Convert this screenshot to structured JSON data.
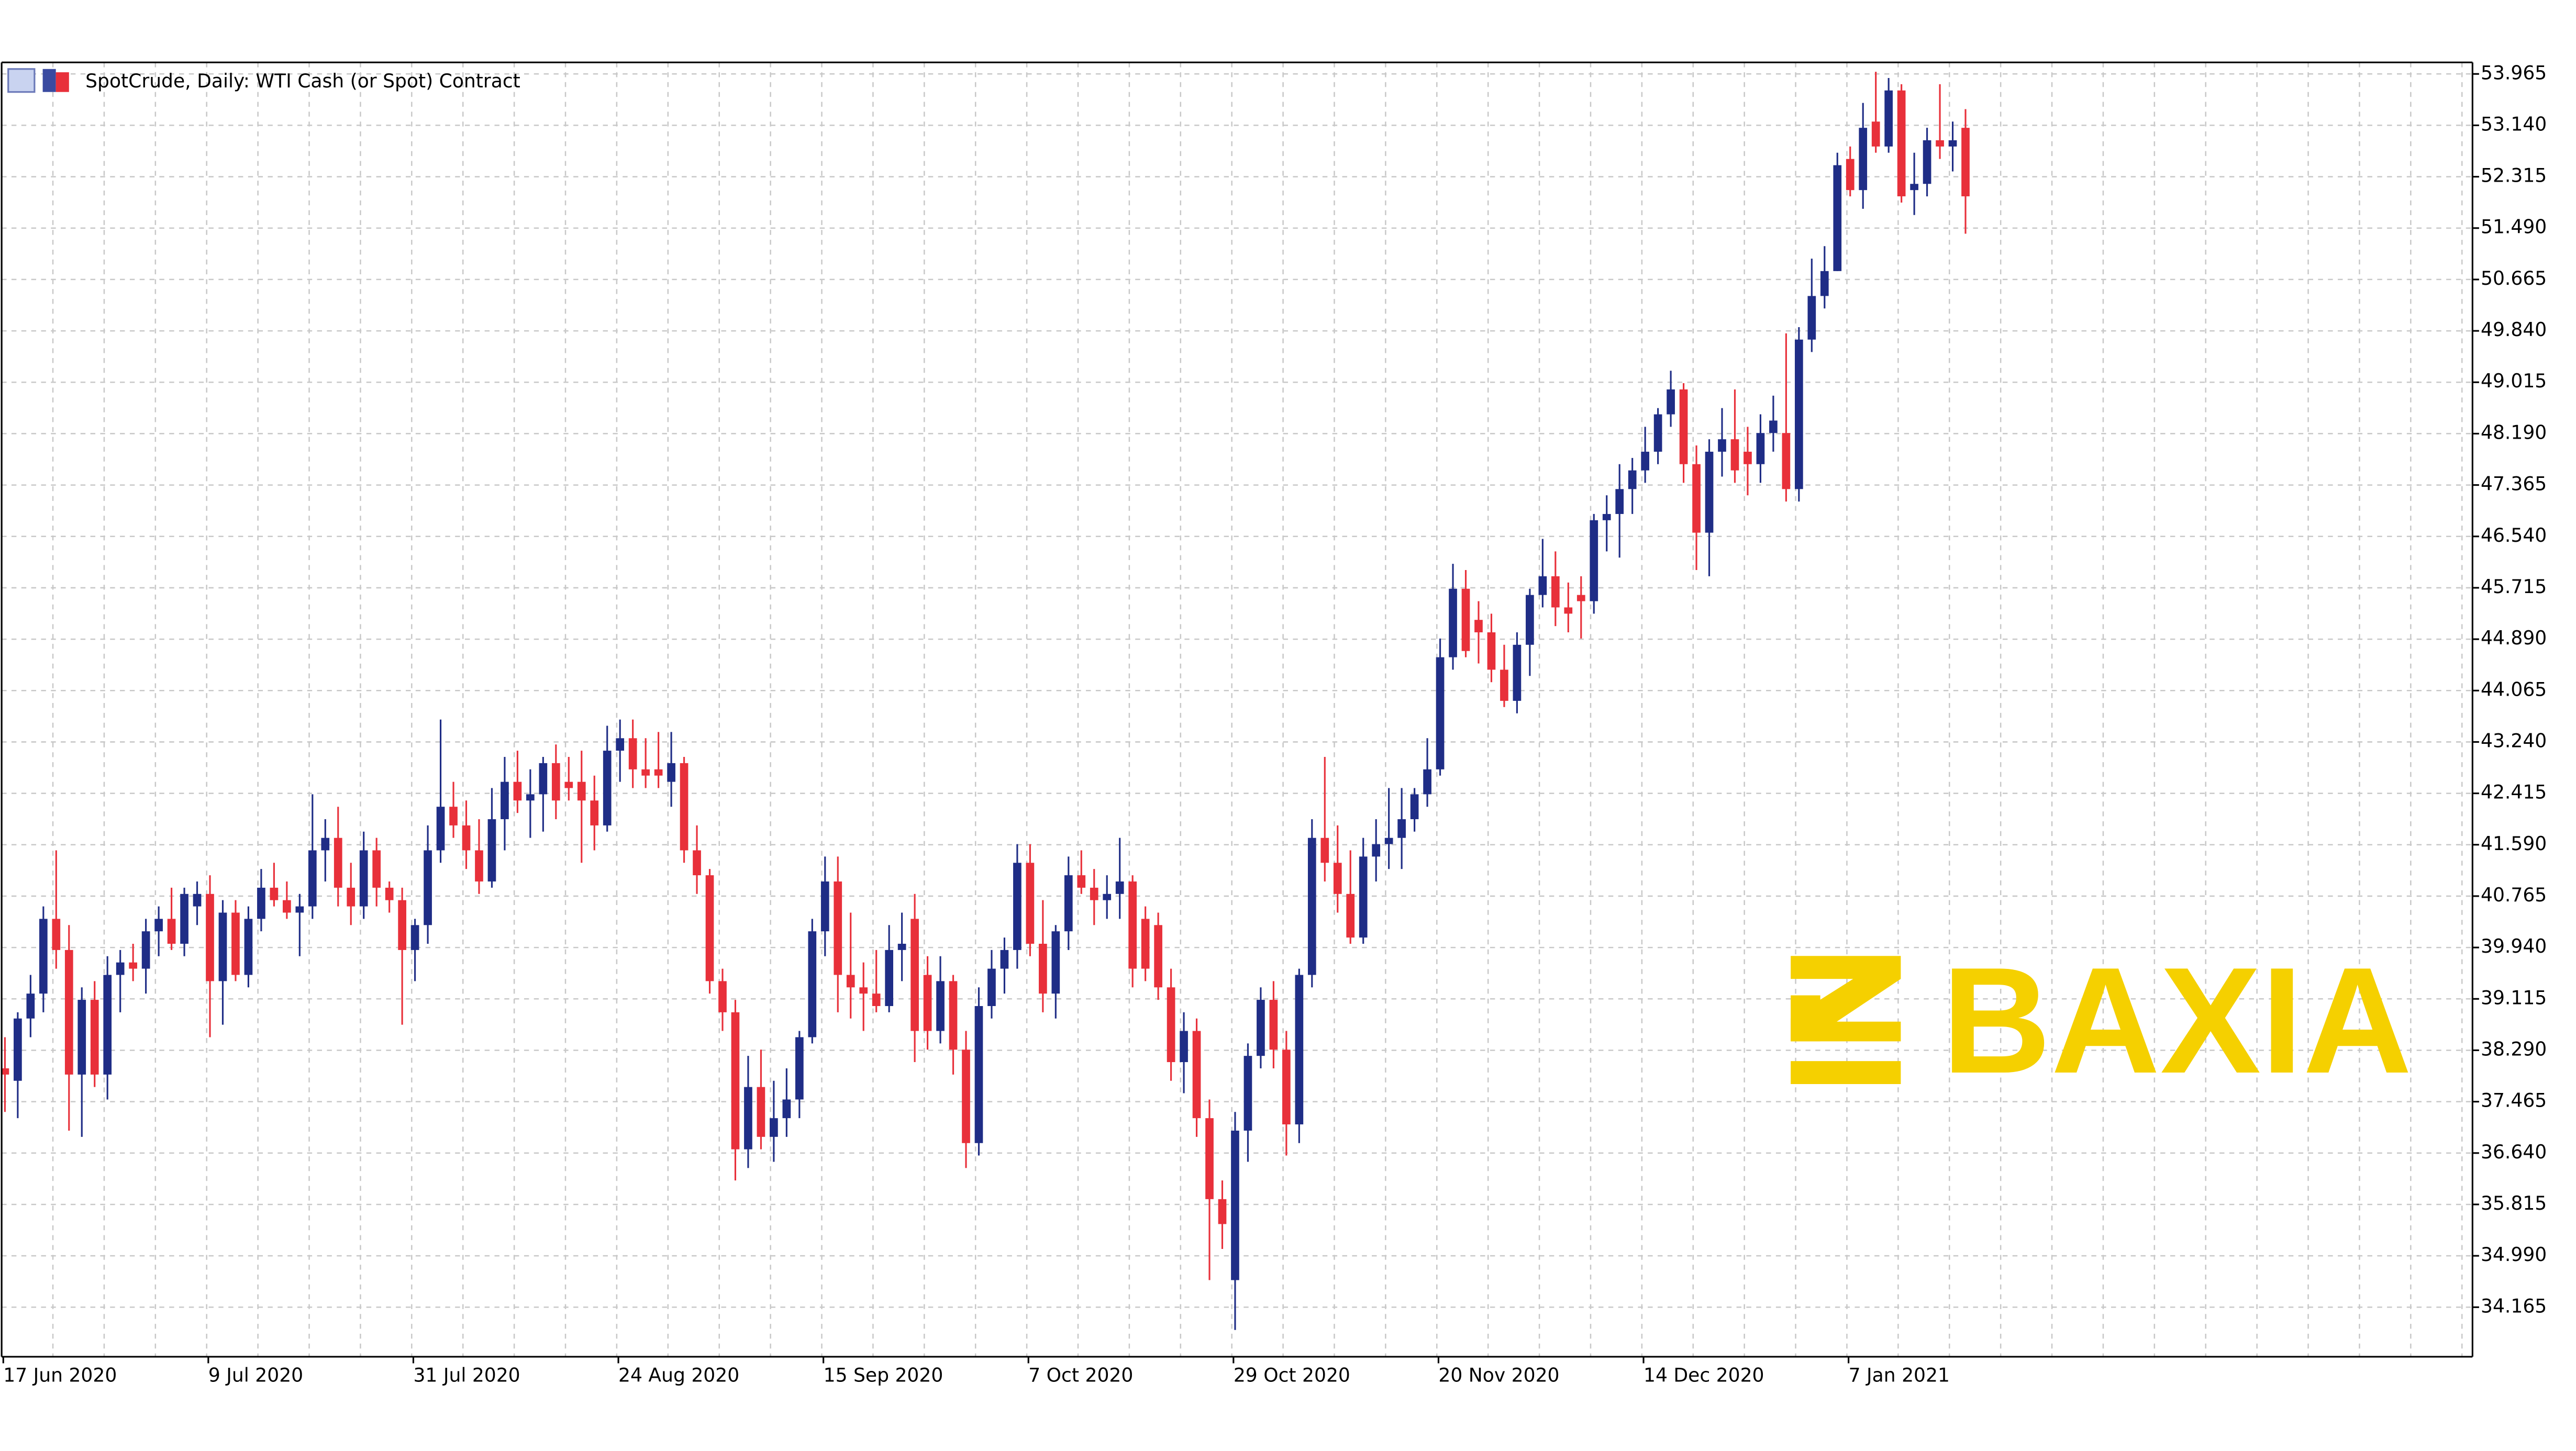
{
  "chart_data": {
    "type": "candlestick",
    "title": "SpotCrude, Daily:  WTI Cash (or Spot) Contract",
    "watermark": "BAXIA",
    "up_color": "#1f2d86",
    "down_color": "#e8303a",
    "grid": true,
    "ylim": [
      33.37,
      54.15
    ],
    "yticks": [
      53.965,
      {
        "value": 53.14,
        "label": "53.140"
      },
      52.315,
      {
        "value": 51.49,
        "label": "51.490"
      },
      50.665,
      {
        "value": 49.84,
        "label": "49.840"
      },
      49.015,
      {
        "value": 48.19,
        "label": "48.190"
      },
      47.365,
      {
        "value": 46.54,
        "label": "46.540"
      },
      45.715,
      {
        "value": 44.89,
        "label": "44.890"
      },
      44.065,
      {
        "value": 43.24,
        "label": "43.240"
      },
      42.415,
      {
        "value": 41.59,
        "label": "41.590"
      },
      40.765,
      {
        "value": 39.94,
        "label": "39.940"
      },
      39.115,
      {
        "value": 38.29,
        "label": "38.290"
      },
      37.465,
      {
        "value": 36.64,
        "label": "36.640"
      },
      35.815,
      {
        "value": 34.99,
        "label": "34.990"
      },
      34.165
    ],
    "categories": [
      "17 Jun 2020",
      null,
      null,
      null,
      null,
      null,
      null,
      null,
      null,
      null,
      null,
      null,
      null,
      null,
      null,
      null,
      "9 Jul 2020",
      null,
      null,
      null,
      null,
      null,
      null,
      null,
      null,
      null,
      null,
      null,
      null,
      null,
      null,
      null,
      "31 Jul 2020",
      null,
      null,
      null,
      null,
      null,
      null,
      null,
      null,
      null,
      null,
      null,
      null,
      null,
      null,
      null,
      "24 Aug 2020",
      null,
      null,
      null,
      null,
      null,
      null,
      null,
      null,
      null,
      null,
      null,
      null,
      null,
      null,
      null,
      "15 Sep 2020",
      null,
      null,
      null,
      null,
      null,
      null,
      null,
      null,
      null,
      null,
      null,
      null,
      null,
      null,
      null,
      "7 Oct 2020",
      null,
      null,
      null,
      null,
      null,
      null,
      null,
      null,
      null,
      null,
      null,
      null,
      null,
      null,
      null,
      "29 Oct 2020",
      null,
      null,
      null,
      null,
      null,
      null,
      null,
      null,
      null,
      null,
      null,
      null,
      null,
      null,
      null,
      "20 Nov 2020",
      null,
      null,
      null,
      null,
      null,
      null,
      null,
      null,
      null,
      null,
      null,
      null,
      null,
      null,
      null,
      "14 Dec 2020",
      null,
      null,
      null,
      null,
      null,
      null,
      null,
      null,
      null,
      null,
      null,
      null,
      null,
      null,
      null,
      "7 Jan 2021",
      null,
      null,
      null,
      null,
      null,
      null,
      null,
      null,
      null
    ],
    "ohlc": [
      [
        38.0,
        38.5,
        37.3,
        37.9
      ],
      [
        37.8,
        38.9,
        37.2,
        38.8
      ],
      [
        38.8,
        39.5,
        38.5,
        39.2
      ],
      [
        39.2,
        40.6,
        38.9,
        40.4
      ],
      [
        40.4,
        41.5,
        39.6,
        39.9
      ],
      [
        39.9,
        40.3,
        37.0,
        37.9
      ],
      [
        37.9,
        39.3,
        36.9,
        39.1
      ],
      [
        39.1,
        39.4,
        37.7,
        37.9
      ],
      [
        37.9,
        39.8,
        37.5,
        39.5
      ],
      [
        39.5,
        39.9,
        38.9,
        39.7
      ],
      [
        39.7,
        40.0,
        39.4,
        39.6
      ],
      [
        39.6,
        40.4,
        39.2,
        40.2
      ],
      [
        40.2,
        40.6,
        39.8,
        40.4
      ],
      [
        40.4,
        40.9,
        39.9,
        40.0
      ],
      [
        40.0,
        40.9,
        39.8,
        40.8
      ],
      [
        40.6,
        41.0,
        40.3,
        40.8
      ],
      [
        40.8,
        41.1,
        38.5,
        39.4
      ],
      [
        39.4,
        40.7,
        38.7,
        40.5
      ],
      [
        40.5,
        40.7,
        39.4,
        39.5
      ],
      [
        39.5,
        40.6,
        39.3,
        40.4
      ],
      [
        40.4,
        41.2,
        40.2,
        40.9
      ],
      [
        40.9,
        41.3,
        40.6,
        40.7
      ],
      [
        40.7,
        41.0,
        40.4,
        40.5
      ],
      [
        40.5,
        40.8,
        39.8,
        40.6
      ],
      [
        40.6,
        42.4,
        40.4,
        41.5
      ],
      [
        41.5,
        42.0,
        41.0,
        41.7
      ],
      [
        41.7,
        42.2,
        40.6,
        40.9
      ],
      [
        40.9,
        41.3,
        40.3,
        40.6
      ],
      [
        40.6,
        41.8,
        40.4,
        41.5
      ],
      [
        41.5,
        41.7,
        40.6,
        40.9
      ],
      [
        40.9,
        41.0,
        40.5,
        40.7
      ],
      [
        40.7,
        40.9,
        38.7,
        39.9
      ],
      [
        39.9,
        40.4,
        39.4,
        40.3
      ],
      [
        40.3,
        41.9,
        40.0,
        41.5
      ],
      [
        41.5,
        43.6,
        41.3,
        42.2
      ],
      [
        42.2,
        42.6,
        41.7,
        41.9
      ],
      [
        41.9,
        42.3,
        41.2,
        41.5
      ],
      [
        41.5,
        42.0,
        40.8,
        41.0
      ],
      [
        41.0,
        42.5,
        40.9,
        42.0
      ],
      [
        42.0,
        43.0,
        41.5,
        42.6
      ],
      [
        42.6,
        43.1,
        42.1,
        42.3
      ],
      [
        42.3,
        42.8,
        41.7,
        42.4
      ],
      [
        42.4,
        43.0,
        41.8,
        42.9
      ],
      [
        42.9,
        43.2,
        42.0,
        42.3
      ],
      [
        42.6,
        43.0,
        42.3,
        42.5
      ],
      [
        42.6,
        43.1,
        41.3,
        42.3
      ],
      [
        42.3,
        42.7,
        41.5,
        41.9
      ],
      [
        41.9,
        43.5,
        41.8,
        43.1
      ],
      [
        43.1,
        43.6,
        42.6,
        43.3
      ],
      [
        43.3,
        43.6,
        42.5,
        42.8
      ],
      [
        42.8,
        43.3,
        42.5,
        42.7
      ],
      [
        42.8,
        43.4,
        42.5,
        42.7
      ],
      [
        42.6,
        43.4,
        42.2,
        42.9
      ],
      [
        42.9,
        43.0,
        41.3,
        41.5
      ],
      [
        41.5,
        41.9,
        40.8,
        41.1
      ],
      [
        41.1,
        41.2,
        39.2,
        39.4
      ],
      [
        39.4,
        39.6,
        38.6,
        38.9
      ],
      [
        38.9,
        39.1,
        36.2,
        36.7
      ],
      [
        36.7,
        38.2,
        36.4,
        37.7
      ],
      [
        37.7,
        38.3,
        36.7,
        36.9
      ],
      [
        36.9,
        37.8,
        36.5,
        37.2
      ],
      [
        37.2,
        38.0,
        36.9,
        37.5
      ],
      [
        37.5,
        38.6,
        37.2,
        38.5
      ],
      [
        38.5,
        40.4,
        38.4,
        40.2
      ],
      [
        40.2,
        41.4,
        39.8,
        41.0
      ],
      [
        41.0,
        41.4,
        38.9,
        39.5
      ],
      [
        39.5,
        40.5,
        38.8,
        39.3
      ],
      [
        39.3,
        39.7,
        38.6,
        39.2
      ],
      [
        39.2,
        39.9,
        38.9,
        39.0
      ],
      [
        39.0,
        40.3,
        38.9,
        39.9
      ],
      [
        39.9,
        40.5,
        39.4,
        40.0
      ],
      [
        40.4,
        40.8,
        38.1,
        38.6
      ],
      [
        39.5,
        39.8,
        38.3,
        38.6
      ],
      [
        38.6,
        39.8,
        38.4,
        39.4
      ],
      [
        39.4,
        39.5,
        37.9,
        38.3
      ],
      [
        38.3,
        38.6,
        36.4,
        36.8
      ],
      [
        36.8,
        39.3,
        36.6,
        39.0
      ],
      [
        39.0,
        39.9,
        38.8,
        39.6
      ],
      [
        39.6,
        40.1,
        39.2,
        39.9
      ],
      [
        39.9,
        41.6,
        39.6,
        41.3
      ],
      [
        41.3,
        41.6,
        39.8,
        40.0
      ],
      [
        40.0,
        40.7,
        38.9,
        39.2
      ],
      [
        39.2,
        40.3,
        38.8,
        40.2
      ],
      [
        40.2,
        41.4,
        39.9,
        41.1
      ],
      [
        41.1,
        41.5,
        40.8,
        40.9
      ],
      [
        40.9,
        41.2,
        40.3,
        40.7
      ],
      [
        40.7,
        41.1,
        40.4,
        40.8
      ],
      [
        40.8,
        41.7,
        40.4,
        41.0
      ],
      [
        41.0,
        41.1,
        39.3,
        39.6
      ],
      [
        40.4,
        40.6,
        39.4,
        39.6
      ],
      [
        40.3,
        40.5,
        39.1,
        39.3
      ],
      [
        39.3,
        39.6,
        37.8,
        38.1
      ],
      [
        38.1,
        38.9,
        37.6,
        38.6
      ],
      [
        38.6,
        38.8,
        36.9,
        37.2
      ],
      [
        37.2,
        37.5,
        34.6,
        35.9
      ],
      [
        35.9,
        36.2,
        35.1,
        35.5
      ],
      [
        34.6,
        37.3,
        33.8,
        37.0
      ],
      [
        37.0,
        38.4,
        36.5,
        38.2
      ],
      [
        38.2,
        39.3,
        38.0,
        39.1
      ],
      [
        39.1,
        39.4,
        38.0,
        38.3
      ],
      [
        38.3,
        38.6,
        36.6,
        37.1
      ],
      [
        37.1,
        39.6,
        36.8,
        39.5
      ],
      [
        39.5,
        42.0,
        39.3,
        41.7
      ],
      [
        41.7,
        43.0,
        41.0,
        41.3
      ],
      [
        41.3,
        41.9,
        40.5,
        40.8
      ],
      [
        40.8,
        41.5,
        40.0,
        40.1
      ],
      [
        40.1,
        41.7,
        40.0,
        41.4
      ],
      [
        41.4,
        42.0,
        41.0,
        41.6
      ],
      [
        41.6,
        42.5,
        41.2,
        41.7
      ],
      [
        41.7,
        42.5,
        41.2,
        42.0
      ],
      [
        42.0,
        42.5,
        41.8,
        42.4
      ],
      [
        42.4,
        43.3,
        42.2,
        42.8
      ],
      [
        42.8,
        44.9,
        42.7,
        44.6
      ],
      [
        44.6,
        46.1,
        44.4,
        45.7
      ],
      [
        45.7,
        46.0,
        44.6,
        44.7
      ],
      [
        45.2,
        45.5,
        44.5,
        45.0
      ],
      [
        45.0,
        45.3,
        44.2,
        44.4
      ],
      [
        44.4,
        44.8,
        43.8,
        43.9
      ],
      [
        43.9,
        45.0,
        43.7,
        44.8
      ],
      [
        44.8,
        45.7,
        44.3,
        45.6
      ],
      [
        45.6,
        46.5,
        45.4,
        45.9
      ],
      [
        45.9,
        46.3,
        45.1,
        45.4
      ],
      [
        45.4,
        45.8,
        45.0,
        45.3
      ],
      [
        45.6,
        45.9,
        44.9,
        45.5
      ],
      [
        45.5,
        46.9,
        45.3,
        46.8
      ],
      [
        46.8,
        47.2,
        46.3,
        46.9
      ],
      [
        46.9,
        47.7,
        46.2,
        47.3
      ],
      [
        47.3,
        47.8,
        46.9,
        47.6
      ],
      [
        47.6,
        48.3,
        47.4,
        47.9
      ],
      [
        47.9,
        48.6,
        47.7,
        48.5
      ],
      [
        48.5,
        49.2,
        48.3,
        48.9
      ],
      [
        48.9,
        49.0,
        47.4,
        47.7
      ],
      [
        47.7,
        48.0,
        46.0,
        46.6
      ],
      [
        46.6,
        48.1,
        45.9,
        47.9
      ],
      [
        47.9,
        48.6,
        47.5,
        48.1
      ],
      [
        48.1,
        48.9,
        47.4,
        47.6
      ],
      [
        47.9,
        48.3,
        47.2,
        47.7
      ],
      [
        47.7,
        48.5,
        47.4,
        48.2
      ],
      [
        48.2,
        48.8,
        47.9,
        48.4
      ],
      [
        48.2,
        49.8,
        47.1,
        47.3
      ],
      [
        47.3,
        49.9,
        47.1,
        49.7
      ],
      [
        49.7,
        51.0,
        49.5,
        50.4
      ],
      [
        50.4,
        51.2,
        50.2,
        50.8
      ],
      [
        50.8,
        52.7,
        50.8,
        52.5
      ],
      [
        52.6,
        52.8,
        52.0,
        52.1
      ],
      [
        52.1,
        53.5,
        51.8,
        53.1
      ],
      [
        53.2,
        54.0,
        52.7,
        52.8
      ],
      [
        52.8,
        53.9,
        52.7,
        53.7
      ],
      [
        53.7,
        53.8,
        51.9,
        52.0
      ],
      [
        52.1,
        52.7,
        51.7,
        52.2
      ],
      [
        52.2,
        53.1,
        52.0,
        52.9
      ],
      [
        52.9,
        53.8,
        52.6,
        52.8
      ],
      [
        52.8,
        53.2,
        52.4,
        52.9
      ],
      [
        53.1,
        53.4,
        51.4,
        52.0
      ]
    ]
  }
}
